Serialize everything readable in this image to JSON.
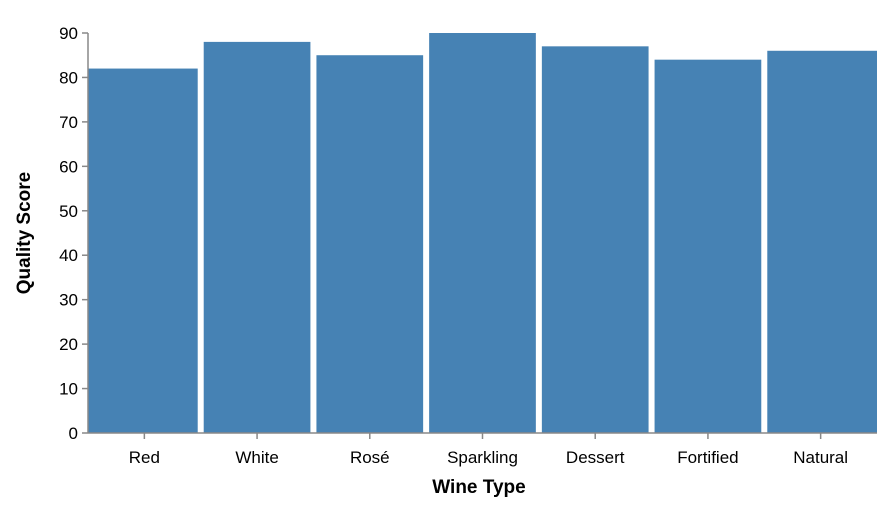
{
  "chart_data": {
    "type": "bar",
    "categories": [
      "Red",
      "White",
      "Rosé",
      "Sparkling",
      "Dessert",
      "Fortified",
      "Natural"
    ],
    "values": [
      82,
      88,
      85,
      90,
      87,
      84,
      86
    ],
    "xlabel": "Wine Type",
    "ylabel": "Quality Score",
    "ylim": [
      0,
      90
    ],
    "yticks": [
      0,
      10,
      20,
      30,
      40,
      50,
      60,
      70,
      80,
      90
    ],
    "bar_color": "#4682b4",
    "grid": false,
    "legend": "none"
  }
}
